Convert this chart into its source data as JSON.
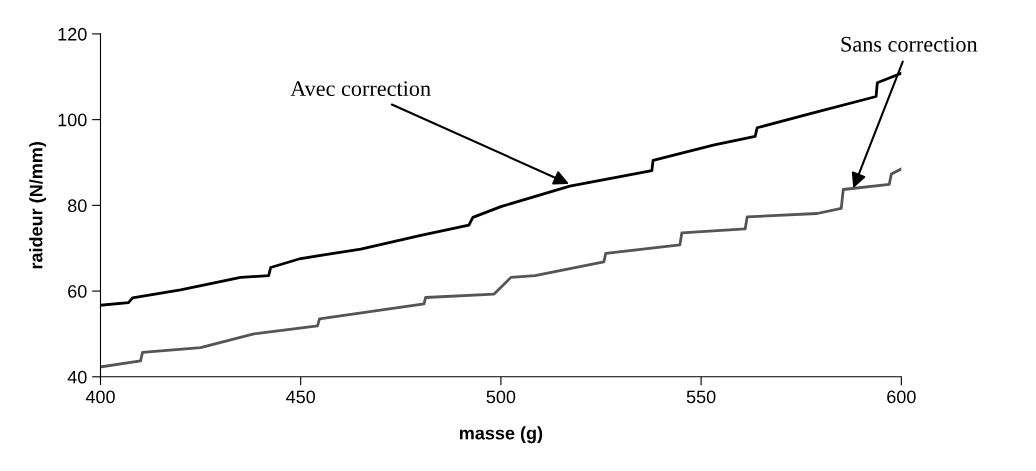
{
  "chart_data": {
    "type": "line",
    "xlabel": "masse (g)",
    "ylabel": "raideur (N/mm)",
    "xlim": [
      400,
      600
    ],
    "ylim": [
      40,
      120
    ],
    "xticks": [
      400,
      450,
      500,
      550,
      600
    ],
    "yticks": [
      40,
      60,
      80,
      100,
      120
    ],
    "grid": false,
    "legend": false,
    "marker": "none",
    "line_style": "solid",
    "series": [
      {
        "color": "#000000",
        "x": [
          400,
          407,
          408,
          420,
          435,
          442,
          442.5,
          450,
          465,
          480,
          492,
          493,
          500,
          517.2,
          537.7,
          538,
          553.3,
          563.5,
          564,
          577.3,
          593.7,
          594,
          600
        ],
        "values": [
          56.7,
          57.3,
          58.4,
          60.3,
          63.2,
          63.6,
          65.5,
          67.6,
          69.8,
          73,
          75.4,
          77.2,
          79.7,
          84.5,
          88.1,
          90.5,
          94.1,
          96.1,
          98.1,
          101.4,
          105.4,
          108.6,
          110.8
        ]
      },
      {
        "color": "#555555",
        "x": [
          400,
          410,
          410.5,
          425,
          438.3,
          454.2,
          454.7,
          480.8,
          481.2,
          498.3,
          502.5,
          508.5,
          525.7,
          526.2,
          544.7,
          545.2,
          561,
          561.5,
          579,
          585,
          585.5,
          597,
          597.5,
          600
        ],
        "values": [
          42.3,
          43.7,
          45.7,
          46.8,
          50,
          51.9,
          53.5,
          57,
          58.5,
          59.3,
          63.2,
          63.6,
          66.8,
          68.8,
          70.8,
          73.6,
          74.5,
          77.3,
          78.1,
          79.3,
          83.7,
          84.9,
          87.3,
          88.5
        ]
      }
    ],
    "annotations": [
      {
        "text": "Avec correction",
        "x": 517,
        "y": 85
      },
      {
        "text": "Sans correction",
        "x": 588,
        "y": 84
      }
    ]
  }
}
